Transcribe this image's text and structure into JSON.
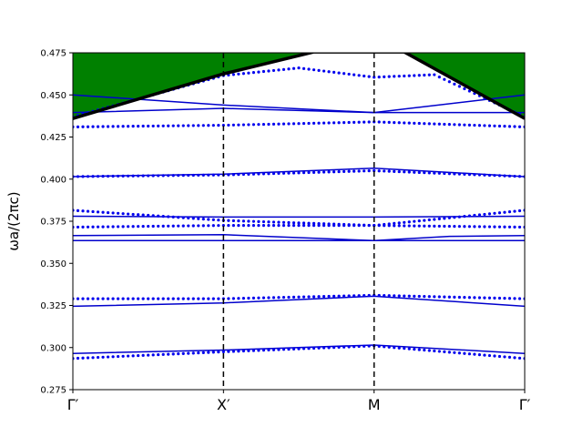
{
  "chart_data": {
    "type": "line",
    "title": "",
    "xlabel": "",
    "ylabel": "ωa/(2πc)",
    "ylim": [
      0.275,
      0.475
    ],
    "xlim": [
      0,
      3
    ],
    "yticks": [
      "0.275",
      "0.300",
      "0.325",
      "0.350",
      "0.375",
      "0.400",
      "0.425",
      "0.450",
      "0.475"
    ],
    "xticks": [
      {
        "x": 0,
        "label": "Γ′"
      },
      {
        "x": 1,
        "label": "X′"
      },
      {
        "x": 2,
        "label": "M"
      },
      {
        "x": 3,
        "label": "Γ′"
      }
    ],
    "grid": false,
    "vlines": {
      "x": [
        1,
        2
      ],
      "style": "dashed",
      "color": "#000000"
    },
    "colors": {
      "bands": "#0000cc",
      "points": "#0000ee",
      "light_cone_fill": "#008000",
      "light_line": "#000000"
    },
    "light_cone": {
      "line_x": [
        0,
        1,
        1.6,
        2.2,
        3
      ],
      "line_y": [
        0.436,
        0.4625,
        0.4755,
        0.4755,
        0.436
      ],
      "fill": "above_line"
    },
    "series": [
      {
        "style": "line",
        "x": [
          0,
          1,
          2,
          3
        ],
        "y": [
          0.2965,
          0.2985,
          0.3015,
          0.2965
        ]
      },
      {
        "style": "line",
        "x": [
          0,
          1,
          2,
          3
        ],
        "y": [
          0.3245,
          0.3265,
          0.3305,
          0.3245
        ]
      },
      {
        "style": "line",
        "x": [
          0,
          1,
          2,
          3
        ],
        "y": [
          0.3635,
          0.3635,
          0.3635,
          0.3635
        ]
      },
      {
        "style": "line",
        "x": [
          0,
          1,
          2,
          2.5,
          3
        ],
        "y": [
          0.3665,
          0.367,
          0.3635,
          0.366,
          0.3665
        ]
      },
      {
        "style": "line",
        "x": [
          0,
          1,
          2,
          3
        ],
        "y": [
          0.378,
          0.3775,
          0.3775,
          0.378
        ]
      },
      {
        "style": "line",
        "x": [
          0,
          1,
          2,
          3
        ],
        "y": [
          0.4015,
          0.403,
          0.4065,
          0.4015
        ]
      },
      {
        "style": "line",
        "x": [
          0,
          1,
          2,
          3
        ],
        "y": [
          0.4395,
          0.442,
          0.4395,
          0.45
        ]
      },
      {
        "style": "line",
        "x": [
          0,
          1,
          2,
          3
        ],
        "y": [
          0.45,
          0.444,
          0.4395,
          0.4395
        ]
      },
      {
        "style": "dots",
        "x": [
          0,
          1,
          2,
          3
        ],
        "y": [
          0.2935,
          0.2975,
          0.301,
          0.2935
        ]
      },
      {
        "style": "dots",
        "x": [
          0,
          1,
          2,
          3
        ],
        "y": [
          0.329,
          0.329,
          0.331,
          0.329
        ]
      },
      {
        "style": "dots",
        "x": [
          0,
          1,
          2,
          3
        ],
        "y": [
          0.3715,
          0.3725,
          0.3725,
          0.3715
        ]
      },
      {
        "style": "dots",
        "x": [
          0,
          1,
          2,
          3
        ],
        "y": [
          0.3815,
          0.3755,
          0.3725,
          0.3815
        ]
      },
      {
        "style": "dots",
        "x": [
          0,
          1,
          2,
          3
        ],
        "y": [
          0.4015,
          0.4025,
          0.405,
          0.4015
        ]
      },
      {
        "style": "dots",
        "x": [
          0,
          1,
          2,
          3
        ],
        "y": [
          0.431,
          0.432,
          0.434,
          0.431
        ]
      },
      {
        "style": "dots",
        "x": [
          0,
          1,
          1.5,
          2,
          2.4,
          3
        ],
        "y": [
          0.437,
          0.4615,
          0.466,
          0.4605,
          0.462,
          0.437
        ]
      }
    ]
  }
}
